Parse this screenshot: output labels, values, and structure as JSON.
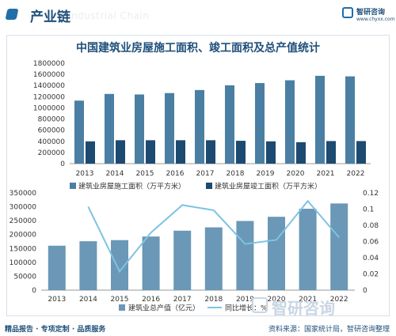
{
  "header": {
    "title": "产业链",
    "ghost_text": "Industrial Chain",
    "brand_name": "智研咨询",
    "brand_url": "www.chyxx.com"
  },
  "chart_title": "中国建筑业房屋施工面积、竣工面积及总产值统计",
  "footer": {
    "left": "精品报告 · 专项定制 · 品质服务",
    "right": "资料来源：国家统计局，智研咨询整理"
  },
  "watermark": "智研咨询",
  "colors": {
    "construction": "#4a7fa3",
    "completion": "#1c4a70",
    "output": "#6a98b6",
    "growth": "#7ec3e3"
  },
  "chart_data": [
    {
      "type": "bar",
      "categories": [
        "2013",
        "2014",
        "2015",
        "2016",
        "2017",
        "2018",
        "2019",
        "2020",
        "2021",
        "2022"
      ],
      "ylim": [
        0,
        1800000
      ],
      "yticks": [
        "0",
        "200000",
        "400000",
        "600000",
        "800000",
        "1000000",
        "1200000",
        "1400000",
        "1600000",
        "1800000"
      ],
      "series": [
        {
          "name": "建筑业房屋施工面积（万平方米）",
          "values": [
            1130000,
            1250000,
            1240000,
            1265000,
            1320000,
            1405000,
            1445000,
            1495000,
            1575000,
            1565000
          ]
        },
        {
          "name": "建筑业房屋竣工面积（万平方米）",
          "values": [
            400000,
            420000,
            420000,
            420000,
            420000,
            410000,
            400000,
            385000,
            405000,
            405000
          ]
        }
      ]
    },
    {
      "type": "bar",
      "categories": [
        "2013",
        "2014",
        "2015",
        "2016",
        "2017",
        "2018",
        "2019",
        "2020",
        "2021",
        "2022"
      ],
      "ylim": [
        0,
        350000
      ],
      "yticks": [
        "0",
        "50000",
        "100000",
        "150000",
        "200000",
        "250000",
        "300000",
        "350000"
      ],
      "y2lim": [
        0,
        0.12
      ],
      "y2ticks": [
        "0",
        "0.02",
        "0.04",
        "0.06",
        "0.08",
        "0.1",
        "0.12"
      ],
      "series": [
        {
          "name": "建筑业总产值（亿元）",
          "type": "bar",
          "values": [
            160000,
            176000,
            180000,
            193000,
            214000,
            226000,
            249000,
            264000,
            293000,
            312000
          ]
        },
        {
          "name": "同比增长：%",
          "type": "line",
          "axis": "right",
          "values": [
            null,
            0.103,
            0.023,
            0.071,
            0.105,
            0.0986,
            0.057,
            0.062,
            0.11,
            0.065
          ]
        }
      ]
    }
  ]
}
